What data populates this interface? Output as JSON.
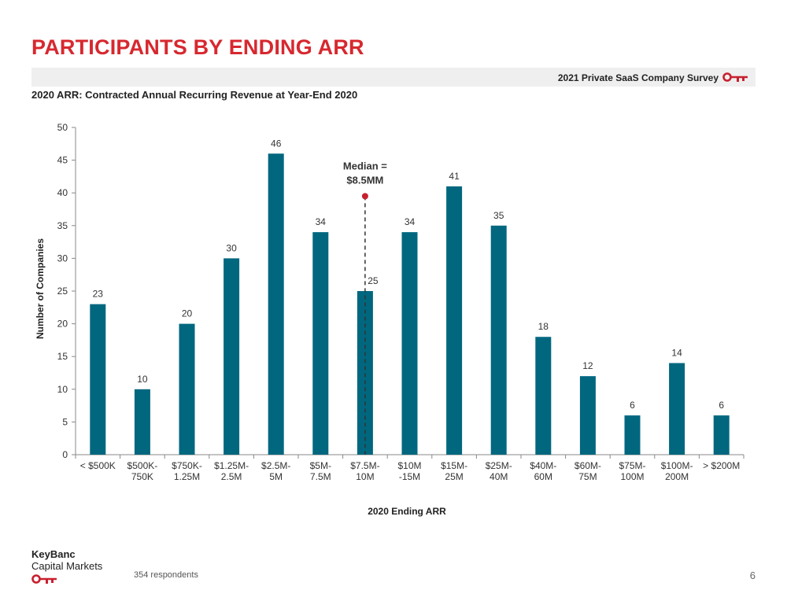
{
  "header": {
    "title": "PARTICIPANTS BY ENDING ARR",
    "survey_label": "2021 Private SaaS Company Survey",
    "subtitle": "2020 ARR: Contracted Annual Recurring Revenue at Year-End 2020"
  },
  "chart_data": {
    "type": "bar",
    "categories": [
      [
        "< $500K"
      ],
      [
        "$500K-",
        "750K"
      ],
      [
        "$750K-",
        "1.25M"
      ],
      [
        "$1.25M-",
        "2.5M"
      ],
      [
        "$2.5M-",
        "5M"
      ],
      [
        "$5M-",
        "7.5M"
      ],
      [
        "$7.5M-",
        "10M"
      ],
      [
        "$10M",
        "-15M"
      ],
      [
        "$15M-",
        "25M"
      ],
      [
        "$25M-",
        "40M"
      ],
      [
        "$40M-",
        "60M"
      ],
      [
        "$60M-",
        "75M"
      ],
      [
        "$75M-",
        "100M"
      ],
      [
        "$100M-",
        "200M"
      ],
      [
        "> $200M"
      ]
    ],
    "values": [
      23,
      10,
      20,
      30,
      46,
      34,
      25,
      34,
      41,
      35,
      18,
      12,
      6,
      14,
      6
    ],
    "xlabel": "2020 Ending ARR",
    "ylabel": "Number of Companies",
    "ylim": [
      0,
      50
    ],
    "yticks": [
      0,
      5,
      10,
      15,
      20,
      25,
      30,
      35,
      40,
      45,
      50
    ],
    "grid": false,
    "legend": "none",
    "bar_color": "#00677f",
    "annotation": {
      "text": [
        "Median =",
        "$8.5MM"
      ],
      "category_index": 6,
      "marker_value": 39.5,
      "line_style": "dashed",
      "marker_color": "#c8202f"
    }
  },
  "footer": {
    "logo_line1": "KeyBanc",
    "logo_line2": "Capital Markets",
    "respondents": "354 respondents",
    "page_number": "6"
  },
  "colors": {
    "title_red": "#d7282f",
    "survey_bar_bg": "#efefef",
    "bar": "#00677f",
    "key_red": "#c8202f"
  },
  "icons": {
    "survey_logo": "key-icon",
    "footer_logo": "key-icon"
  }
}
